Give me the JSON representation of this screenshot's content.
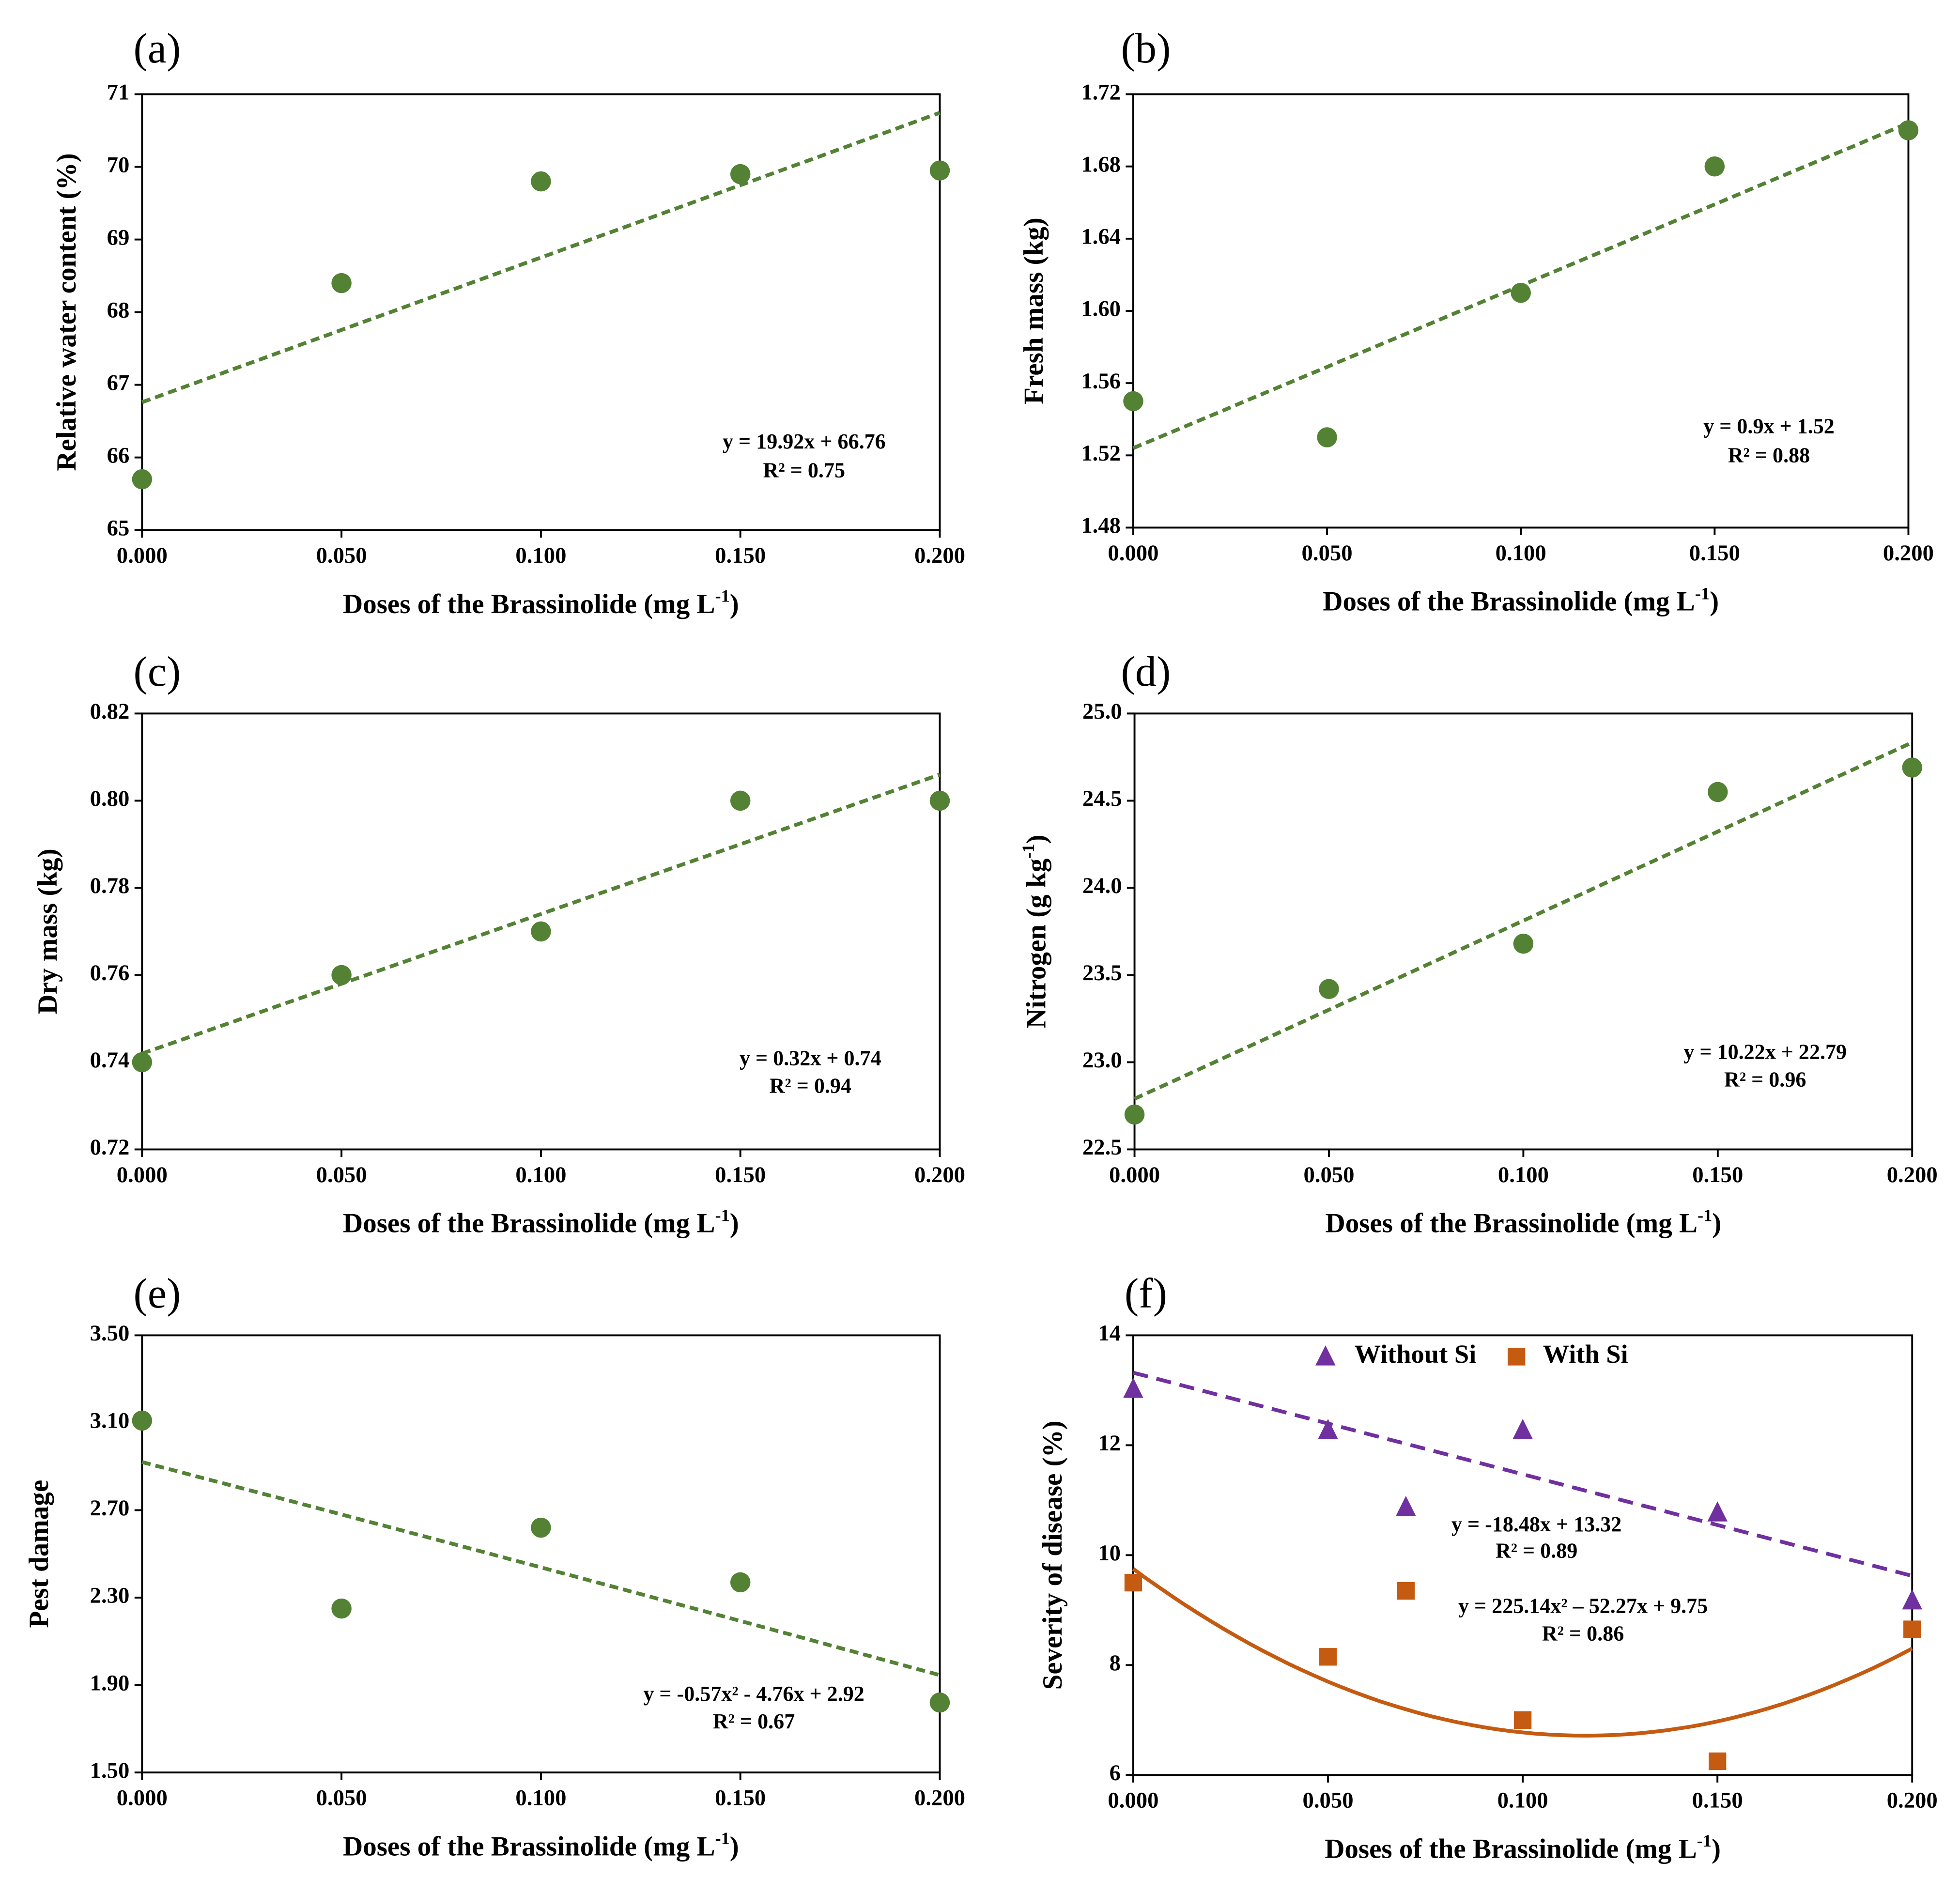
{
  "colors": {
    "green": "#548235",
    "purple": "#7030A0",
    "orange": "#C55A11",
    "axis": "#000000"
  },
  "chart_data": [
    {
      "panel": "(a)",
      "type": "scatter",
      "x": [
        0,
        0.05,
        0.1,
        0.15,
        0.2
      ],
      "y": [
        65.7,
        68.4,
        69.8,
        69.9,
        69.95
      ],
      "xlabel": "Doses of the Brassinolide  (mg L",
      "xlabel_sup": "-1",
      "xlabel_end": ")",
      "ylabel": "Relative water content (%)",
      "ylabel_sup": "",
      "ylabel_end": "",
      "xlim": [
        0,
        0.2
      ],
      "ylim": [
        65,
        71
      ],
      "xticks": [
        "0.000",
        "0.050",
        "0.100",
        "0.150",
        "0.200"
      ],
      "yticks": [
        "65",
        "66",
        "67",
        "68",
        "69",
        "70",
        "71"
      ],
      "trend": {
        "type": "linear",
        "coef": [
          19.92,
          66.76
        ]
      },
      "equation": "y = 19.92x + 66.76",
      "r2": "R² = 0.75"
    },
    {
      "panel": "(b)",
      "type": "scatter",
      "x": [
        0,
        0.05,
        0.1,
        0.15,
        0.2
      ],
      "y": [
        1.55,
        1.53,
        1.61,
        1.68,
        1.7
      ],
      "xlabel": "Doses of the Brassinolide  (mg L",
      "xlabel_sup": "-1",
      "xlabel_end": ")",
      "ylabel": "Fresh mass (kg)",
      "ylabel_sup": "",
      "ylabel_end": "",
      "xlim": [
        0,
        0.2
      ],
      "ylim": [
        1.48,
        1.72
      ],
      "xticks": [
        "0.000",
        "0.050",
        "0.100",
        "0.150",
        "0.200"
      ],
      "yticks": [
        "1.48",
        "1.52",
        "1.56",
        "1.60",
        "1.64",
        "1.68",
        "1.72"
      ],
      "trend": {
        "type": "linear",
        "coef": [
          0.9,
          1.524
        ]
      },
      "equation": "y = 0.9x + 1.52",
      "r2": "R² = 0.88"
    },
    {
      "panel": "(c)",
      "type": "scatter",
      "x": [
        0,
        0.05,
        0.1,
        0.15,
        0.2
      ],
      "y": [
        0.74,
        0.76,
        0.77,
        0.8,
        0.8
      ],
      "xlabel": "Doses of the Brassinolide  (mg L",
      "xlabel_sup": "-1",
      "xlabel_end": ")",
      "ylabel": "Dry mass (kg)",
      "ylabel_sup": "",
      "ylabel_end": "",
      "xlim": [
        0,
        0.2
      ],
      "ylim": [
        0.72,
        0.82
      ],
      "xticks": [
        "0.000",
        "0.050",
        "0.100",
        "0.150",
        "0.200"
      ],
      "yticks": [
        "0.72",
        "0.74",
        "0.76",
        "0.78",
        "0.80",
        "0.82"
      ],
      "trend": {
        "type": "linear",
        "coef": [
          0.32,
          0.742
        ]
      },
      "equation": "y = 0.32x + 0.74",
      "r2": "R² = 0.94"
    },
    {
      "panel": "(d)",
      "type": "scatter",
      "x": [
        0,
        0.05,
        0.1,
        0.15,
        0.2
      ],
      "y": [
        22.7,
        23.42,
        23.68,
        24.55,
        24.69
      ],
      "xlabel": "Doses of the Brassinolide  (mg L",
      "xlabel_sup": "-1",
      "xlabel_end": ")",
      "ylabel": "Nitrogen (g kg",
      "ylabel_sup": "-1",
      "ylabel_end": ")",
      "xlim": [
        0,
        0.2
      ],
      "ylim": [
        22.5,
        25.0
      ],
      "xticks": [
        "0.000",
        "0.050",
        "0.100",
        "0.150",
        "0.200"
      ],
      "yticks": [
        "22.5",
        "23.0",
        "23.5",
        "24.0",
        "24.5",
        "25.0"
      ],
      "trend": {
        "type": "linear",
        "coef": [
          10.22,
          22.79
        ]
      },
      "equation": "y = 10.22x + 22.79",
      "r2": "R² = 0.96"
    },
    {
      "panel": "(e)",
      "type": "scatter",
      "x": [
        0,
        0.05,
        0.1,
        0.15,
        0.2
      ],
      "y": [
        3.11,
        2.25,
        2.62,
        2.37,
        1.82
      ],
      "xlabel": "Doses of the Brassinolide  (mg L",
      "xlabel_sup": "-1",
      "xlabel_end": ")",
      "ylabel": "Pest damage",
      "ylabel_sup": "",
      "ylabel_end": "",
      "xlim": [
        0,
        0.2
      ],
      "ylim": [
        1.5,
        3.5
      ],
      "xticks": [
        "0.000",
        "0.050",
        "0.100",
        "0.150",
        "0.200"
      ],
      "yticks": [
        "1.50",
        "1.90",
        "2.30",
        "2.70",
        "3.10",
        "3.50"
      ],
      "trend": {
        "type": "quadratic",
        "coef": [
          -0.57,
          -4.76,
          2.92
        ]
      },
      "equation": "y = -0.57x² - 4.76x + 2.92",
      "r2": "R² = 0.67"
    },
    {
      "panel": "(f)",
      "type": "scatter",
      "xlabel": "Doses of the Brassinolide  (mg L",
      "xlabel_sup": "-1",
      "xlabel_end": ")",
      "ylabel": "Severity of disease (%)",
      "ylabel_sup": "",
      "ylabel_end": "",
      "xlim": [
        0,
        0.2
      ],
      "ylim": [
        6,
        14
      ],
      "xticks": [
        "0.000",
        "0.050",
        "0.100",
        "0.150",
        "0.200"
      ],
      "yticks": [
        "6",
        "8",
        "10",
        "12",
        "14"
      ],
      "legend": "top-center",
      "series": [
        {
          "name": "Without Si",
          "marker": "triangle",
          "x": [
            0,
            0.05,
            0.07,
            0.1,
            0.15,
            0.2
          ],
          "y": [
            13.0,
            12.25,
            10.85,
            12.25,
            10.75,
            9.15
          ],
          "trend": {
            "type": "linear",
            "coef": [
              -18.48,
              13.32
            ]
          },
          "equation": "y = -18.48x + 13.32",
          "r2": "R² = 0.89"
        },
        {
          "name": "With Si",
          "marker": "square",
          "x": [
            0,
            0.05,
            0.07,
            0.1,
            0.15,
            0.2
          ],
          "y": [
            9.5,
            8.15,
            9.35,
            7.0,
            6.25,
            8.65
          ],
          "trend": {
            "type": "quadratic",
            "coef": [
              225.14,
              -52.27,
              9.75
            ]
          },
          "equation": "y = 225.14x² – 52.27x + 9.75",
          "r2": "R² = 0.86"
        }
      ]
    }
  ]
}
